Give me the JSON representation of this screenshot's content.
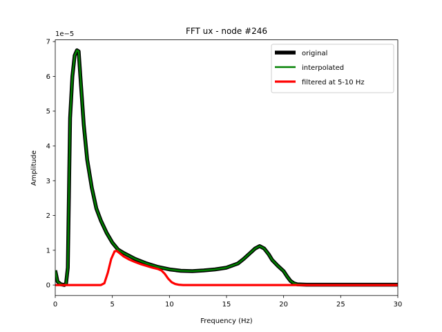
{
  "chart_data": {
    "type": "line",
    "title": "FFT ux - node #246",
    "xlabel": "Frequency (Hz)",
    "ylabel": "Amplitude",
    "offset_text": "1e−5",
    "xlim": [
      0,
      30
    ],
    "ylim": [
      -0.3,
      7.05
    ],
    "y_scale_factor": "1e-5",
    "xticks": [
      0,
      5,
      10,
      15,
      20,
      25,
      30
    ],
    "yticks": [
      0,
      1,
      2,
      3,
      4,
      5,
      6,
      7
    ],
    "grid": false,
    "legend_position": "top-right",
    "series": [
      {
        "name": "original",
        "color": "#000000",
        "x": [
          0,
          0.2,
          0.5,
          0.8,
          0.95,
          1.1,
          1.3,
          1.5,
          1.7,
          1.9,
          2.05,
          2.2,
          2.5,
          2.8,
          3.2,
          3.6,
          4.0,
          4.5,
          5.0,
          5.5,
          6.0,
          7.0,
          8.0,
          9.0,
          10.0,
          11.0,
          12.0,
          13.0,
          14.0,
          15.0,
          16.0,
          16.5,
          17.0,
          17.5,
          17.9,
          18.3,
          18.7,
          19.0,
          19.5,
          20.0,
          20.3,
          20.6,
          20.9,
          21.2,
          22,
          25,
          30
        ],
        "y": [
          0.42,
          0.1,
          0.02,
          0.0,
          0.05,
          0.5,
          4.8,
          6.0,
          6.6,
          6.75,
          6.72,
          6.0,
          4.6,
          3.6,
          2.8,
          2.2,
          1.85,
          1.5,
          1.22,
          1.02,
          0.92,
          0.75,
          0.62,
          0.52,
          0.45,
          0.41,
          0.4,
          0.42,
          0.45,
          0.5,
          0.62,
          0.75,
          0.9,
          1.05,
          1.12,
          1.05,
          0.88,
          0.72,
          0.55,
          0.4,
          0.25,
          0.12,
          0.05,
          0.02,
          0.01,
          0.01,
          0.01
        ]
      },
      {
        "name": "interpolated",
        "color": "#008000",
        "x": [
          0,
          0.2,
          0.5,
          0.8,
          0.95,
          1.1,
          1.3,
          1.5,
          1.7,
          1.9,
          2.05,
          2.2,
          2.5,
          2.8,
          3.2,
          3.6,
          4.0,
          4.5,
          5.0,
          5.5,
          6.0,
          7.0,
          8.0,
          9.0,
          10.0,
          11.0,
          12.0,
          13.0,
          14.0,
          15.0,
          16.0,
          16.5,
          17.0,
          17.5,
          17.9,
          18.3,
          18.7,
          19.0,
          19.5,
          20.0,
          20.3,
          20.6,
          20.9,
          21.2,
          22,
          25,
          30
        ],
        "y": [
          0.42,
          0.1,
          0.02,
          0.0,
          0.05,
          0.5,
          4.8,
          6.0,
          6.6,
          6.75,
          6.72,
          6.0,
          4.6,
          3.6,
          2.8,
          2.2,
          1.85,
          1.5,
          1.22,
          1.02,
          0.92,
          0.75,
          0.62,
          0.52,
          0.45,
          0.41,
          0.4,
          0.42,
          0.45,
          0.5,
          0.62,
          0.75,
          0.9,
          1.05,
          1.12,
          1.05,
          0.88,
          0.72,
          0.55,
          0.4,
          0.25,
          0.12,
          0.05,
          0.02,
          0.01,
          0.01,
          0.01
        ]
      },
      {
        "name": "filtered at 5-10 Hz",
        "color": "#ff0000",
        "x": [
          0,
          4.0,
          4.3,
          4.6,
          4.9,
          5.2,
          5.4,
          5.7,
          6.0,
          6.5,
          7.0,
          7.5,
          8.0,
          8.5,
          9.0,
          9.3,
          9.6,
          9.9,
          10.2,
          10.5,
          10.8,
          11.2,
          12,
          20,
          30
        ],
        "y": [
          0.0,
          0.0,
          0.05,
          0.35,
          0.75,
          0.97,
          0.98,
          0.9,
          0.82,
          0.73,
          0.66,
          0.6,
          0.55,
          0.5,
          0.46,
          0.42,
          0.32,
          0.18,
          0.08,
          0.03,
          0.01,
          0.0,
          0.0,
          0.0,
          0.0
        ]
      }
    ]
  }
}
